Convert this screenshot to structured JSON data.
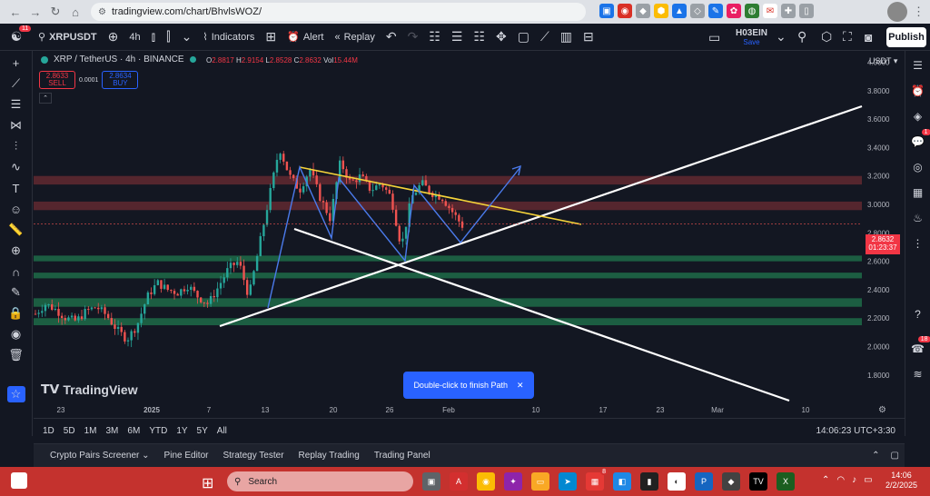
{
  "browser": {
    "url": "tradingview.com/chart/BhvlsWOZ/",
    "ext_badge": "1"
  },
  "toolbar": {
    "logo_badge": "11",
    "symbol": "XRPUSDT",
    "interval": "4h",
    "indicators_label": "Indicators",
    "alert_label": "Alert",
    "replay_label": "Replay",
    "user_name": "H03EIN",
    "save_label": "Save",
    "publish_label": "Publish"
  },
  "legend": {
    "title": "XRP / TetherUS · 4h · BINANCE",
    "o_label": "O",
    "o": "2.8817",
    "h_label": "H",
    "h": "2.9154",
    "l_label": "L",
    "l": "2.8528",
    "c_label": "C",
    "c": "2.8632",
    "vol_label": "Vol",
    "vol": "15.44M"
  },
  "trade": {
    "sell_price": "2.8633",
    "sell_label": "SELL",
    "spread": "0.0001",
    "buy_price": "2.8634",
    "buy_label": "BUY"
  },
  "price_axis": {
    "currency": "USDT",
    "current_price": "2.8632",
    "countdown": "01:23:37"
  },
  "chart_data": {
    "type": "candlestick",
    "title": "XRP / TetherUS · 4h · BINANCE",
    "y_ticks": [
      "4.0000",
      "3.8000",
      "3.6000",
      "3.4000",
      "3.2000",
      "3.0000",
      "2.8000",
      "2.6000",
      "2.4000",
      "2.2000",
      "2.0000",
      "1.8000"
    ],
    "x_ticks": [
      "23",
      "2025",
      "7",
      "13",
      "20",
      "26",
      "Feb",
      "10",
      "17",
      "23",
      "Mar",
      "10"
    ],
    "ylim": [
      1.62,
      4.08
    ],
    "close_path": [
      [
        0,
        2.23
      ],
      [
        1,
        2.3
      ],
      [
        2,
        2.26
      ],
      [
        3,
        2.2
      ],
      [
        4,
        2.18
      ],
      [
        5,
        2.25
      ],
      [
        6,
        2.28
      ],
      [
        7,
        2.22
      ],
      [
        8,
        2.12
      ],
      [
        9,
        2.05
      ],
      [
        10,
        2.15
      ],
      [
        11,
        2.35
      ],
      [
        12,
        2.45
      ],
      [
        13,
        2.4
      ],
      [
        14,
        2.38
      ],
      [
        15,
        2.43
      ],
      [
        16,
        2.35
      ],
      [
        17,
        2.3
      ],
      [
        18,
        2.42
      ],
      [
        19,
        2.55
      ],
      [
        20,
        2.6
      ],
      [
        21,
        2.35
      ],
      [
        22,
        2.7
      ],
      [
        23,
        3.05
      ],
      [
        24,
        3.4
      ],
      [
        25,
        3.2
      ],
      [
        26,
        3.1
      ],
      [
        27,
        3.25
      ],
      [
        28,
        3.05
      ],
      [
        29,
        2.9
      ],
      [
        30,
        3.3
      ],
      [
        31,
        3.15
      ],
      [
        32,
        3.2
      ],
      [
        33,
        3.1
      ],
      [
        34,
        3.15
      ],
      [
        35,
        3.05
      ],
      [
        36,
        2.7
      ],
      [
        37,
        3.05
      ],
      [
        38,
        3.15
      ],
      [
        39,
        3.08
      ],
      [
        40,
        3.05
      ],
      [
        41,
        2.95
      ],
      [
        42,
        2.85
      ]
    ],
    "drawings": {
      "red_zones": [
        [
          3.14,
          3.2
        ],
        [
          2.96,
          3.02
        ]
      ],
      "green_zones": [
        [
          2.6,
          2.64
        ],
        [
          2.48,
          2.52
        ],
        [
          2.28,
          2.34
        ],
        [
          2.15,
          2.2
        ]
      ],
      "notes": "White ascending support line, white descending line, yellow descending resistance line, blue zigzag path with arrow"
    }
  },
  "tooltip": {
    "text": "Double-click to finish Path"
  },
  "brand": {
    "name": "TradingView"
  },
  "timeframes": [
    "1D",
    "5D",
    "1M",
    "3M",
    "6M",
    "YTD",
    "1Y",
    "5Y",
    "All"
  ],
  "clock": "14:06:23 UTC+3:30",
  "bottom_tabs": [
    "Crypto Pairs Screener",
    "Pine Editor",
    "Strategy Tester",
    "Replay Trading",
    "Trading Panel"
  ],
  "right_badges": {
    "alerts": "1",
    "notifications": "18"
  },
  "taskbar": {
    "search_placeholder": "Search",
    "time": "14:06",
    "date": "2/2/2025",
    "notif_badge": "8"
  },
  "colors": {
    "bg": "#131722",
    "up": "#26a69a",
    "down": "#ef5350",
    "accent": "#2962ff",
    "taskbar": "#c4322e"
  }
}
